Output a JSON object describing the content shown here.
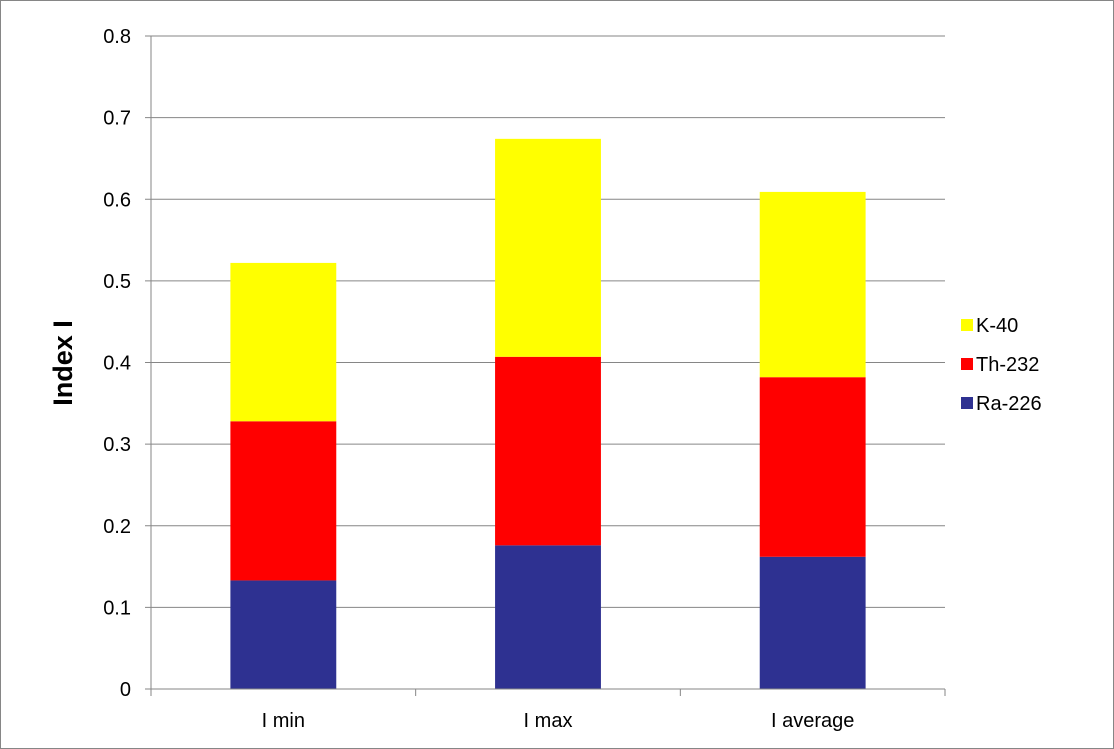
{
  "chart_data": {
    "type": "bar",
    "stacked": true,
    "title": "",
    "xlabel": "",
    "ylabel": "Index I",
    "categories": [
      "I min",
      "I max",
      "I average"
    ],
    "series": [
      {
        "name": "Ra-226",
        "color": "#2e3191",
        "values": [
          0.133,
          0.176,
          0.162
        ]
      },
      {
        "name": "Th-232",
        "color": "#ff0000",
        "values": [
          0.195,
          0.231,
          0.22
        ]
      },
      {
        "name": "K-40",
        "color": "#ffff00",
        "values": [
          0.194,
          0.267,
          0.227
        ]
      }
    ],
    "ylim": [
      0,
      0.8
    ],
    "yticks": [
      "0",
      "0.1",
      "0.2",
      "0.3",
      "0.4",
      "0.5",
      "0.6",
      "0.7",
      "0.8"
    ],
    "grid": true,
    "legend": "right",
    "legend_order": [
      "K-40",
      "Th-232",
      "Ra-226"
    ]
  }
}
